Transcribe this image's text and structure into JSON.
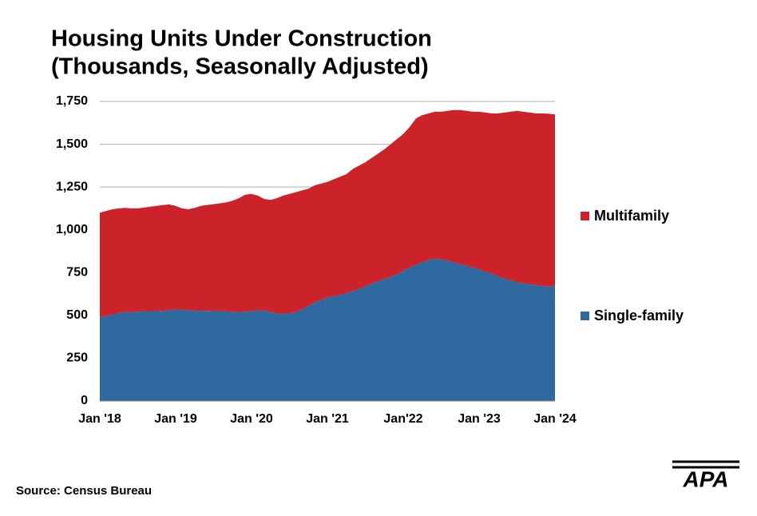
{
  "chart_data": {
    "type": "stacked-area",
    "title": "Housing Units Under Construction",
    "subtitle": "(Thousands, Seasonally Adjusted)",
    "categories": [
      "Jan '18",
      null,
      null,
      null,
      null,
      null,
      null,
      null,
      null,
      null,
      null,
      null,
      "Jan '19",
      null,
      null,
      null,
      null,
      null,
      null,
      null,
      null,
      null,
      null,
      null,
      "Jan '20",
      null,
      null,
      null,
      null,
      null,
      null,
      null,
      null,
      null,
      null,
      null,
      "Jan '21",
      null,
      null,
      null,
      null,
      null,
      null,
      null,
      null,
      null,
      null,
      null,
      "Jan'22",
      null,
      null,
      null,
      null,
      null,
      null,
      null,
      null,
      null,
      null,
      null,
      "Jan '23",
      null,
      null,
      null,
      null,
      null,
      null,
      null,
      null,
      null,
      null,
      null,
      "Jan '24"
    ],
    "series": [
      {
        "name": "Single-family",
        "color": "#2e6a9f",
        "values": [
          490,
          495,
          505,
          515,
          520,
          520,
          522,
          525,
          525,
          525,
          527,
          530,
          535,
          533,
          530,
          528,
          527,
          527,
          525,
          525,
          523,
          522,
          520,
          522,
          525,
          530,
          528,
          520,
          512,
          510,
          512,
          520,
          535,
          555,
          575,
          590,
          605,
          612,
          620,
          630,
          642,
          655,
          670,
          685,
          700,
          712,
          725,
          740,
          760,
          780,
          795,
          810,
          825,
          830,
          828,
          820,
          810,
          800,
          790,
          780,
          770,
          755,
          745,
          730,
          715,
          705,
          695,
          688,
          682,
          678,
          672,
          668,
          675
        ]
      },
      {
        "name": "Multifamily",
        "color": "#cc2229",
        "values": [
          610,
          615,
          615,
          610,
          608,
          605,
          603,
          605,
          610,
          615,
          618,
          618,
          605,
          592,
          590,
          600,
          613,
          618,
          625,
          630,
          637,
          648,
          665,
          683,
          685,
          670,
          652,
          655,
          673,
          690,
          698,
          700,
          695,
          685,
          685,
          680,
          675,
          683,
          690,
          695,
          713,
          720,
          725,
          735,
          745,
          758,
          775,
          790,
          800,
          820,
          855,
          860,
          855,
          860,
          862,
          875,
          890,
          900,
          905,
          910,
          920,
          930,
          935,
          950,
          970,
          985,
          1000,
          1002,
          1003,
          1002,
          1008,
          1010,
          1000
        ]
      }
    ],
    "ylim": [
      0,
      1750
    ],
    "yticks": [
      0,
      250,
      500,
      750,
      {
        "value": 1000,
        "label": "1,000"
      },
      {
        "value": 1250,
        "label": "1,250"
      },
      {
        "value": 1500,
        "label": "1,500"
      },
      {
        "value": 1750,
        "label": "1,750"
      }
    ],
    "grid": true,
    "legend": "right",
    "source": "Source: Census Bureau",
    "logo": "APA"
  }
}
